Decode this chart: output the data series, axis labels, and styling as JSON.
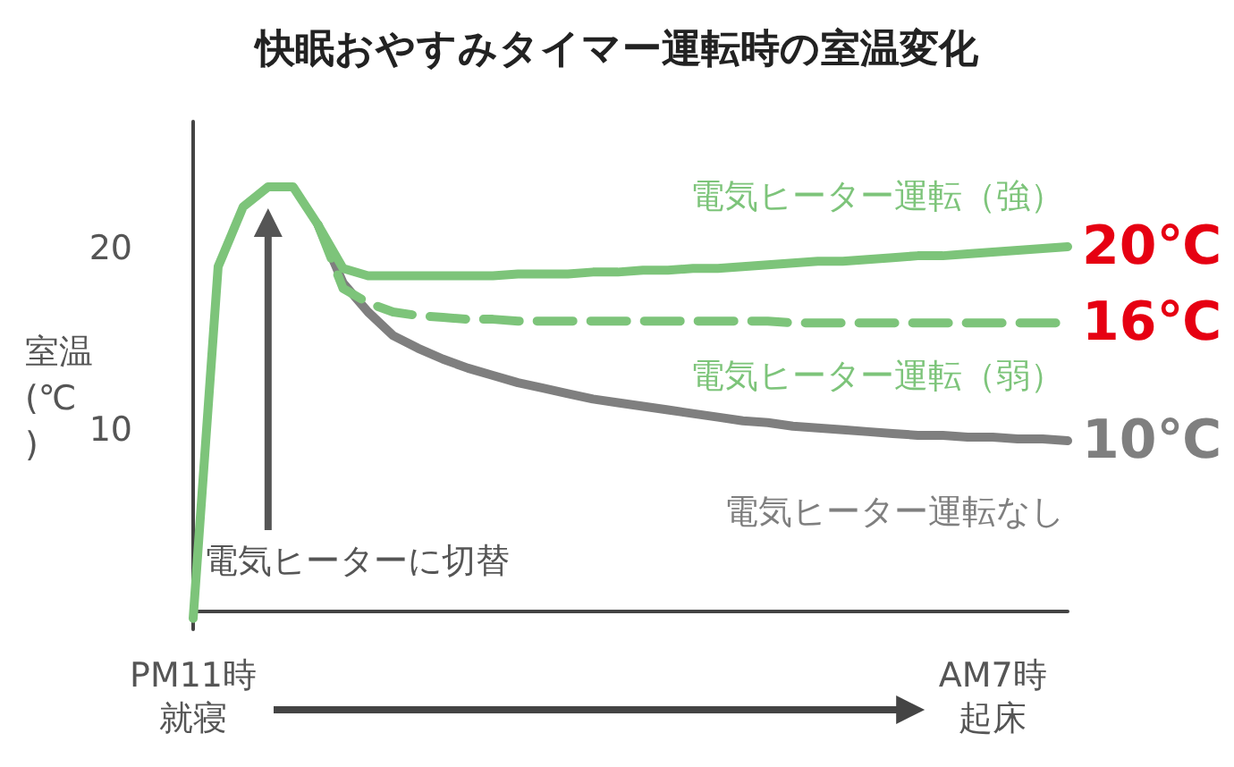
{
  "chart_data": {
    "type": "line",
    "title": "快眠おやすみタイマー運転時の室温変化",
    "ylabel": "室温(℃)",
    "categories": [
      "PM11時就寝",
      null,
      null,
      null,
      null,
      null,
      null,
      null,
      null,
      null,
      null,
      null,
      null,
      null,
      null,
      null,
      null,
      null,
      null,
      null,
      null,
      null,
      null,
      null,
      null,
      null,
      null,
      null,
      null,
      null,
      null,
      null,
      "AM7時起床",
      null,
      null,
      null
    ],
    "ylim": [
      -1,
      27
    ],
    "yticks": [
      10,
      20
    ],
    "grid": false,
    "legend": false,
    "marker": "none",
    "series": [
      {
        "name": "電気ヒーター運転（強）",
        "color": "#7dc47a",
        "line_style": "solid",
        "values": [
          -0.4,
          19,
          22.3,
          23.4,
          23.4,
          21.3,
          18.9,
          18.5,
          18.5,
          18.5,
          18.5,
          18.5,
          18.5,
          18.6,
          18.6,
          18.6,
          18.7,
          18.7,
          18.8,
          18.8,
          18.9,
          18.9,
          19.0,
          19.1,
          19.2,
          19.3,
          19.3,
          19.4,
          19.5,
          19.6,
          19.6,
          19.7,
          19.8,
          19.9,
          20.0,
          20.1
        ]
      },
      {
        "name": "電気ヒーター運転（弱）",
        "color": "#7dc47a",
        "line_style": "dashed",
        "values": [
          null,
          null,
          null,
          null,
          null,
          21.3,
          17.8,
          17.0,
          16.5,
          16.3,
          16.2,
          16.1,
          16.1,
          16.0,
          16.0,
          16.0,
          16.0,
          16.0,
          16.0,
          16.0,
          16.0,
          16.0,
          16.0,
          16.0,
          15.9,
          15.9,
          15.9,
          15.9,
          15.9,
          15.9,
          15.9,
          15.9,
          15.9,
          15.9,
          15.9,
          15.9
        ]
      },
      {
        "name": "電気ヒーター運転なし",
        "color": "#7f7f7f",
        "line_style": "solid",
        "values": [
          null,
          null,
          null,
          null,
          null,
          21.3,
          18.1,
          16.5,
          15.2,
          14.5,
          13.9,
          13.4,
          13.0,
          12.6,
          12.3,
          12.0,
          11.7,
          11.5,
          11.3,
          11.1,
          10.9,
          10.7,
          10.5,
          10.4,
          10.2,
          10.1,
          10.0,
          9.9,
          9.8,
          9.7,
          9.7,
          9.6,
          9.6,
          9.5,
          9.5,
          9.4
        ]
      }
    ],
    "annotations": [
      "電気ヒーターに切替",
      "20℃",
      "16℃",
      "10℃"
    ]
  }
}
